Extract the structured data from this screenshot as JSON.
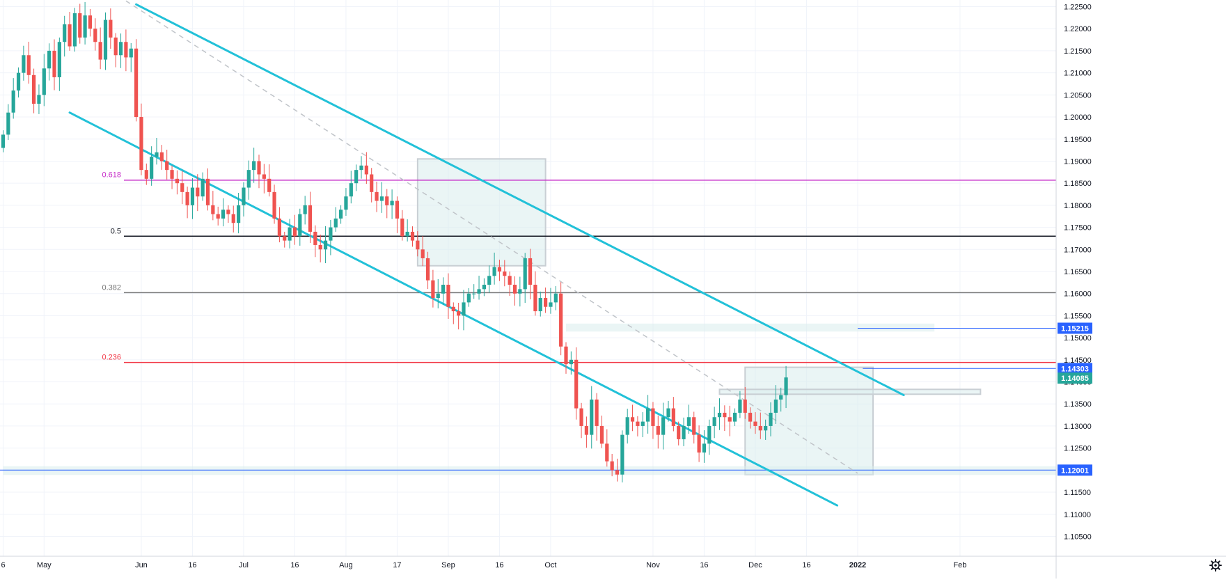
{
  "chart_data": {
    "type": "candlestick",
    "instrument_hint": "EUR/USD daily",
    "y_axis": {
      "ticks": [
        "1.22500",
        "1.22000",
        "1.21500",
        "1.21000",
        "1.20500",
        "1.20000",
        "1.19500",
        "1.19000",
        "1.18500",
        "1.18000",
        "1.17500",
        "1.17000",
        "1.16500",
        "1.16000",
        "1.15500",
        "1.15000",
        "1.14500",
        "1.14000",
        "1.13500",
        "1.13000",
        "1.12500",
        "1.12000",
        "1.11500",
        "1.11000",
        "1.10500"
      ],
      "range": [
        1.1005,
        1.2265
      ]
    },
    "x_axis": {
      "ticks": [
        {
          "label": "6",
          "bar": 0,
          "bold": false
        },
        {
          "label": "May",
          "bar": 8,
          "bold": false
        },
        {
          "label": "Jun",
          "bar": 27,
          "bold": false
        },
        {
          "label": "16",
          "bar": 37,
          "bold": false
        },
        {
          "label": "Jul",
          "bar": 47,
          "bold": false
        },
        {
          "label": "16",
          "bar": 57,
          "bold": false
        },
        {
          "label": "Aug",
          "bar": 67,
          "bold": false
        },
        {
          "label": "17",
          "bar": 77,
          "bold": false
        },
        {
          "label": "Sep",
          "bar": 87,
          "bold": false
        },
        {
          "label": "16",
          "bar": 97,
          "bold": false
        },
        {
          "label": "Oct",
          "bar": 107,
          "bold": false
        },
        {
          "label": "Nov",
          "bar": 127,
          "bold": false
        },
        {
          "label": "16",
          "bar": 137,
          "bold": false
        },
        {
          "label": "Dec",
          "bar": 147,
          "bold": false
        },
        {
          "label": "16",
          "bar": 157,
          "bold": false
        },
        {
          "label": "2022",
          "bar": 167,
          "bold": true
        },
        {
          "label": "Feb",
          "bar": 187,
          "bold": false
        }
      ]
    },
    "closes": [
      1.196,
      1.201,
      1.206,
      1.21,
      1.214,
      1.2095,
      1.203,
      1.205,
      1.211,
      1.215,
      1.209,
      1.217,
      1.221,
      1.216,
      1.2235,
      1.218,
      1.223,
      1.22,
      1.217,
      1.213,
      1.222,
      1.218,
      1.214,
      1.217,
      1.2135,
      1.2155,
      1.2,
      1.188,
      1.186,
      1.191,
      1.192,
      1.19,
      1.188,
      1.186,
      1.185,
      1.183,
      1.18,
      1.184,
      1.182,
      1.186,
      1.18,
      1.178,
      1.177,
      1.179,
      1.178,
      1.176,
      1.18,
      1.184,
      1.188,
      1.19,
      1.187,
      1.186,
      1.183,
      1.177,
      1.173,
      1.172,
      1.175,
      1.173,
      1.178,
      1.18,
      1.174,
      1.171,
      1.17,
      1.172,
      1.175,
      1.177,
      1.179,
      1.182,
      1.185,
      1.188,
      1.189,
      1.187,
      1.183,
      1.181,
      1.182,
      1.18,
      1.181,
      1.177,
      1.173,
      1.174,
      1.172,
      1.17,
      1.168,
      1.163,
      1.159,
      1.16,
      1.162,
      1.157,
      1.156,
      1.155,
      1.158,
      1.16,
      1.16,
      1.161,
      1.162,
      1.164,
      1.166,
      1.165,
      1.164,
      1.162,
      1.16,
      1.161,
      1.168,
      1.162,
      1.156,
      1.159,
      1.157,
      1.158,
      1.16,
      1.148,
      1.144,
      1.145,
      1.134,
      1.13,
      1.128,
      1.136,
      1.13,
      1.126,
      1.122,
      1.12,
      1.119,
      1.128,
      1.132,
      1.131,
      1.13,
      1.131,
      1.134,
      1.13,
      1.128,
      1.132,
      1.134,
      1.13,
      1.127,
      1.13,
      1.132,
      1.128,
      1.124,
      1.126,
      1.13,
      1.132,
      1.133,
      1.132,
      1.131,
      1.133,
      1.136,
      1.133,
      1.131,
      1.13,
      1.129,
      1.13,
      1.133,
      1.136,
      1.137,
      1.141
    ],
    "fib_levels": [
      {
        "label": "0.618",
        "value": 1.1857,
        "color": "#c62cc8"
      },
      {
        "label": "0.5",
        "value": 1.173,
        "color": "#131722"
      },
      {
        "label": "0.382",
        "value": 1.1602,
        "color": "#777777"
      },
      {
        "label": "0.236",
        "value": 1.1444,
        "color": "#f23645"
      }
    ],
    "price_labels": [
      {
        "text": "1.15215",
        "value": 1.15215,
        "color": "#2962ff"
      },
      {
        "text": "1.14303",
        "value": 1.14303,
        "color": "#2962ff"
      },
      {
        "text": "1.14085",
        "value": 1.14085,
        "color": "#26a69a"
      },
      {
        "text": "1.12001",
        "value": 1.12001,
        "color": "#2962ff"
      }
    ],
    "channel_lines": [
      {
        "name": "upper",
        "from": {
          "bar": 26,
          "price": 1.2255
        },
        "to": {
          "bar": 176,
          "price": 1.137
        }
      },
      {
        "name": "lower",
        "from": {
          "bar": 13,
          "price": 1.201
        },
        "to": {
          "bar": 163,
          "price": 1.112
        }
      }
    ],
    "colors": {
      "up": "#26a69a",
      "down": "#ef5350",
      "channel": "#22c1d8",
      "zone": "#d9ecec",
      "axis_text": "#131722"
    }
  }
}
